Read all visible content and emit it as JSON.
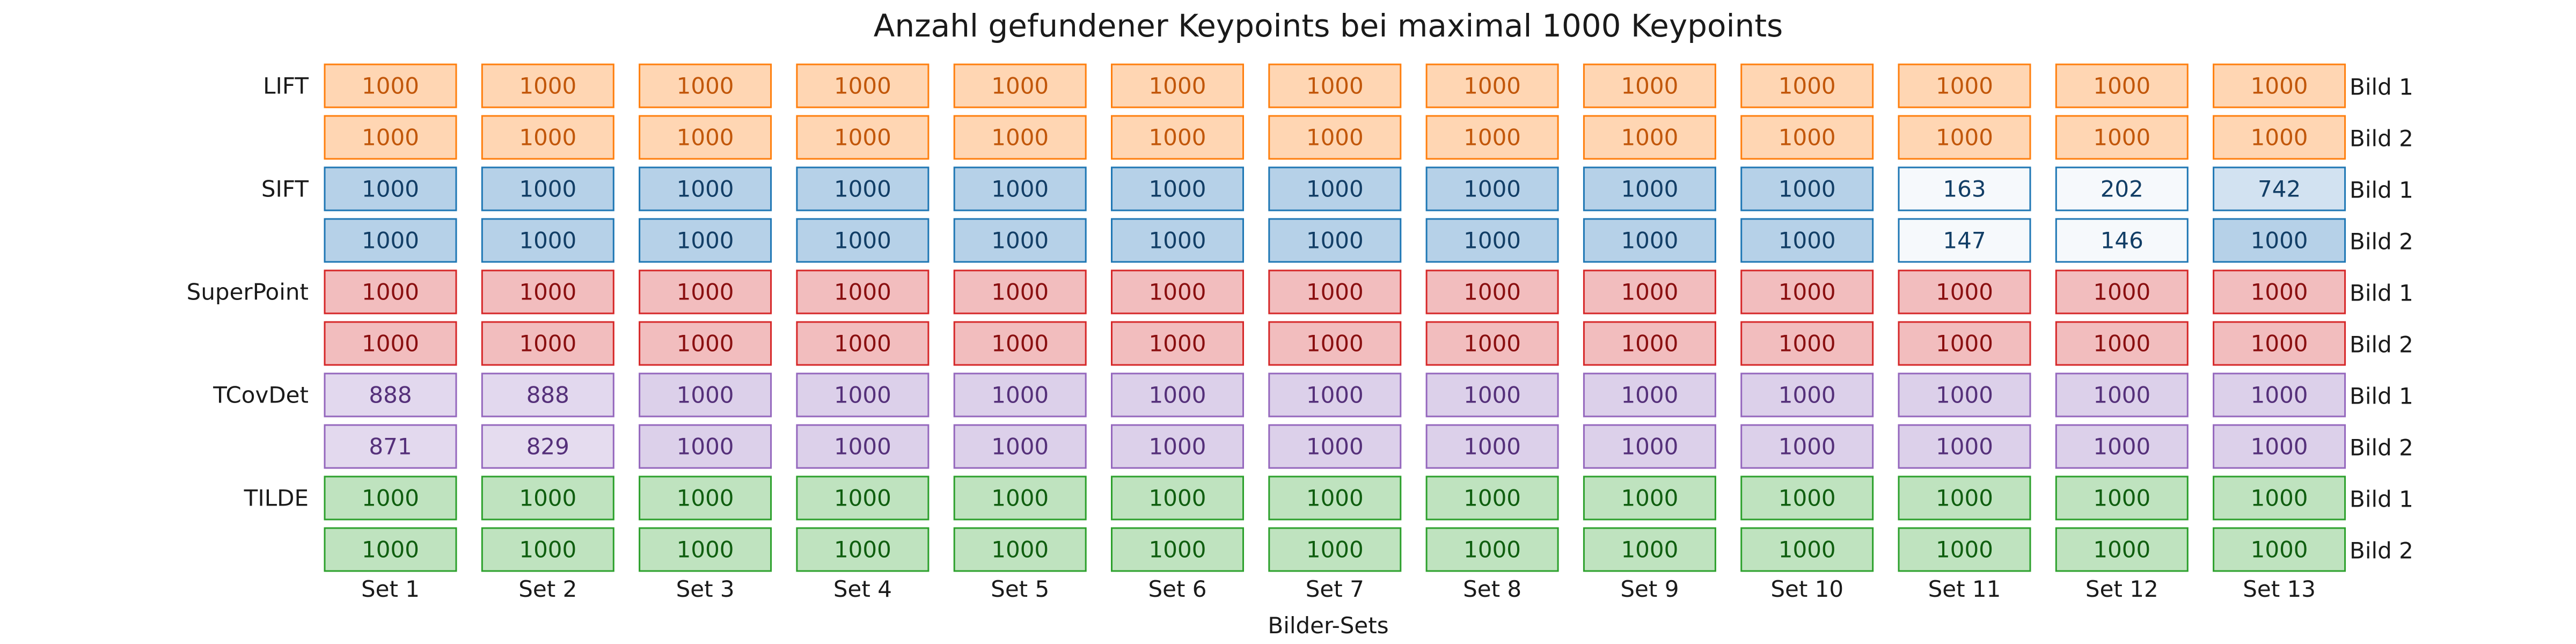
{
  "chart_data": {
    "type": "table",
    "title": "Anzahl gefundener Keypoints bei maximal 1000 Keypoints",
    "xlabel": "Bilder-Sets",
    "columns": [
      "Set 1",
      "Set 2",
      "Set 3",
      "Set 4",
      "Set 5",
      "Set 6",
      "Set 7",
      "Set 8",
      "Set 9",
      "Set 10",
      "Set 11",
      "Set 12",
      "Set 13"
    ],
    "max_value": 1000,
    "groups": [
      {
        "name": "LIFT",
        "colors": {
          "fill": "#ffd6b3",
          "stroke": "#ff7f0e",
          "text": "#c2570a"
        },
        "rows": [
          {
            "image": "Bild 1",
            "values": [
              1000,
              1000,
              1000,
              1000,
              1000,
              1000,
              1000,
              1000,
              1000,
              1000,
              1000,
              1000,
              1000
            ]
          },
          {
            "image": "Bild 2",
            "values": [
              1000,
              1000,
              1000,
              1000,
              1000,
              1000,
              1000,
              1000,
              1000,
              1000,
              1000,
              1000,
              1000
            ]
          }
        ]
      },
      {
        "name": "SIFT",
        "colors": {
          "fill": "#b6d1e8",
          "stroke": "#1f77b4",
          "text": "#123e66"
        },
        "rows": [
          {
            "image": "Bild 1",
            "values": [
              1000,
              1000,
              1000,
              1000,
              1000,
              1000,
              1000,
              1000,
              1000,
              1000,
              163,
              202,
              742
            ]
          },
          {
            "image": "Bild 2",
            "values": [
              1000,
              1000,
              1000,
              1000,
              1000,
              1000,
              1000,
              1000,
              1000,
              1000,
              147,
              146,
              1000
            ]
          }
        ]
      },
      {
        "name": "SuperPoint",
        "colors": {
          "fill": "#f2bdbe",
          "stroke": "#d62728",
          "text": "#8a0f10"
        },
        "rows": [
          {
            "image": "Bild 1",
            "values": [
              1000,
              1000,
              1000,
              1000,
              1000,
              1000,
              1000,
              1000,
              1000,
              1000,
              1000,
              1000,
              1000
            ]
          },
          {
            "image": "Bild 2",
            "values": [
              1000,
              1000,
              1000,
              1000,
              1000,
              1000,
              1000,
              1000,
              1000,
              1000,
              1000,
              1000,
              1000
            ]
          }
        ]
      },
      {
        "name": "TCovDet",
        "colors": {
          "fill": "#dcd0ea",
          "stroke": "#9467bd",
          "text": "#55307a"
        },
        "rows": [
          {
            "image": "Bild 1",
            "values": [
              888,
              888,
              1000,
              1000,
              1000,
              1000,
              1000,
              1000,
              1000,
              1000,
              1000,
              1000,
              1000
            ]
          },
          {
            "image": "Bild 2",
            "values": [
              871,
              829,
              1000,
              1000,
              1000,
              1000,
              1000,
              1000,
              1000,
              1000,
              1000,
              1000,
              1000
            ]
          }
        ]
      },
      {
        "name": "TILDE",
        "colors": {
          "fill": "#bfe3bf",
          "stroke": "#2ca02c",
          "text": "#0f5e0f"
        },
        "rows": [
          {
            "image": "Bild 1",
            "values": [
              1000,
              1000,
              1000,
              1000,
              1000,
              1000,
              1000,
              1000,
              1000,
              1000,
              1000,
              1000,
              1000
            ]
          },
          {
            "image": "Bild 2",
            "values": [
              1000,
              1000,
              1000,
              1000,
              1000,
              1000,
              1000,
              1000,
              1000,
              1000,
              1000,
              1000,
              1000
            ]
          }
        ]
      }
    ]
  }
}
